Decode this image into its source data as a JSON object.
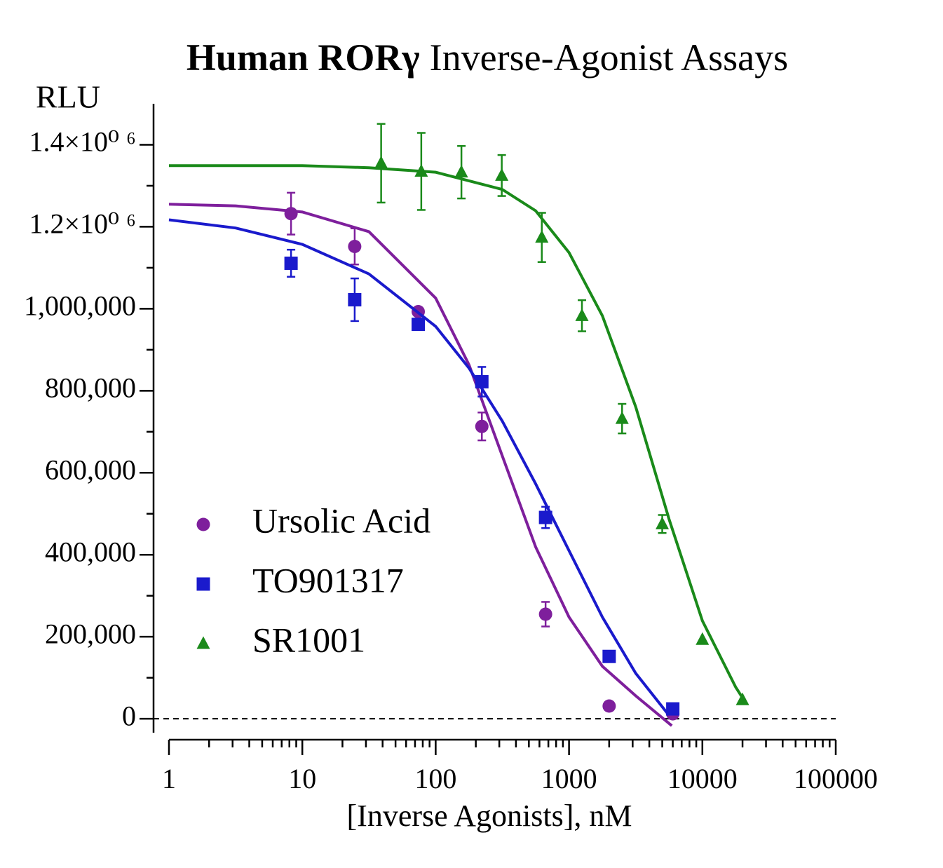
{
  "chart_data": {
    "type": "scatter",
    "title": [
      "Human RORγ",
      "Inverse-Agonist Assays"
    ],
    "xlabel": "[Inverse Agonists], nM",
    "ylabel": "RLU",
    "xscale": "log",
    "xlim": [
      1,
      100000
    ],
    "xticks": [
      1,
      10,
      100,
      1000,
      10000,
      100000
    ],
    "ylim": [
      -34000,
      1500000
    ],
    "yticks": [
      0,
      {
        "value": 200000,
        "label": "200,000"
      },
      {
        "value": 400000,
        "label": "400,000"
      },
      {
        "value": 600000,
        "label": "600,000"
      },
      {
        "value": 800000,
        "label": "800,000"
      },
      {
        "value": 1000000,
        "label": "1,000,000"
      },
      {
        "value": 1200000,
        "label": "1.2×10⁰ ⁶"
      },
      {
        "value": 1400000,
        "label": "1.4×10⁰ ⁶"
      }
    ],
    "minor_ticks": true,
    "zero_line": true,
    "legend": "lower left",
    "series": [
      {
        "name": "Ursolic Acid",
        "color": "#7e1f9c",
        "marker": "circle",
        "x": [
          8.23,
          24.7,
          74,
          222,
          667,
          2000,
          6000
        ],
        "values": [
          1232000,
          1152000,
          993000,
          713000,
          255000,
          31000,
          12000
        ],
        "errors": [
          51000,
          44000,
          null,
          34000,
          30000,
          null,
          null
        ],
        "fit_x": [
          1,
          3.16,
          10,
          31.6,
          100,
          178,
          316,
          562,
          1000,
          1778,
          3162,
          5900
        ],
        "fit_values": [
          1255000,
          1251000,
          1236000,
          1188000,
          1026000,
          863000,
          641000,
          419000,
          248000,
          128000,
          56000,
          -17000
        ]
      },
      {
        "name": "TO901317",
        "color": "#1a1acc",
        "marker": "square",
        "x": [
          8.23,
          24.7,
          74,
          222,
          667,
          2000,
          6000
        ],
        "values": [
          1111000,
          1022000,
          962000,
          822000,
          491000,
          152000,
          24000
        ],
        "errors": [
          33000,
          52000,
          10000,
          36000,
          26000,
          null,
          null
        ],
        "fit_x": [
          1,
          3.16,
          10,
          31.6,
          100,
          178,
          316,
          562,
          1000,
          1778,
          3162,
          5600
        ],
        "fit_values": [
          1217000,
          1197000,
          1157000,
          1085000,
          957000,
          855000,
          726000,
          573000,
          410000,
          248000,
          111000,
          9000
        ]
      },
      {
        "name": "SR1001",
        "color": "#1a8a1a",
        "marker": "triangle",
        "x": [
          39,
          78,
          156,
          313,
          625,
          1250,
          2500,
          5000,
          10000,
          20000
        ],
        "values": [
          1355000,
          1335000,
          1333000,
          1325000,
          1174000,
          983000,
          732000,
          475000,
          193000,
          46000
        ],
        "errors": [
          96000,
          94000,
          64000,
          50000,
          60000,
          38000,
          36000,
          22000,
          null,
          null
        ],
        "fit_x": [
          1,
          10,
          31.6,
          100,
          316,
          562,
          1000,
          1778,
          3162,
          5623,
          10000,
          17783,
          20000
        ],
        "fit_values": [
          1349000,
          1349000,
          1344000,
          1333000,
          1291000,
          1239000,
          1137000,
          983000,
          761000,
          487000,
          239000,
          77000,
          51000
        ]
      }
    ]
  }
}
